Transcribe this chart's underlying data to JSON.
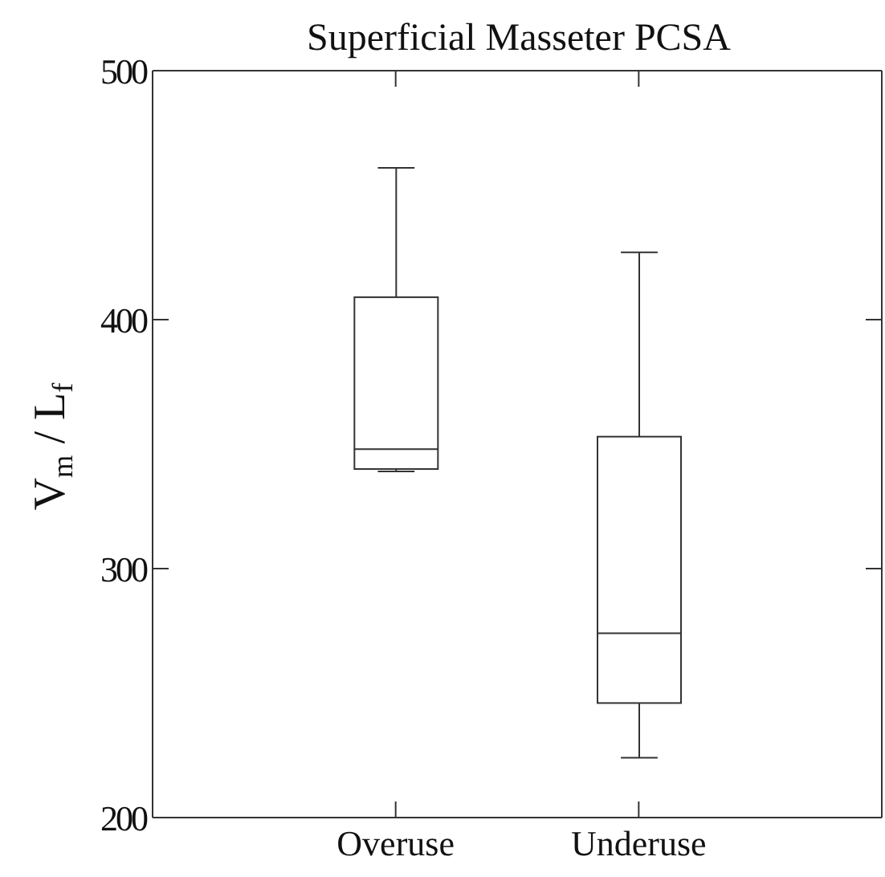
{
  "chart_data": {
    "type": "box",
    "title": "Superficial Masseter PCSA",
    "ylabel": "V$_{m}$ / L$_{f}$",
    "categories": [
      "Overuse",
      "Underuse"
    ],
    "boxes": [
      {
        "low": 339,
        "q1": 340,
        "median": 348,
        "q3": 409,
        "high": 461
      },
      {
        "low": 224,
        "q1": 246,
        "median": 274,
        "q3": 353,
        "high": 427
      }
    ],
    "ylim": [
      200,
      500
    ],
    "yticks": [
      200,
      300,
      400,
      500
    ]
  }
}
